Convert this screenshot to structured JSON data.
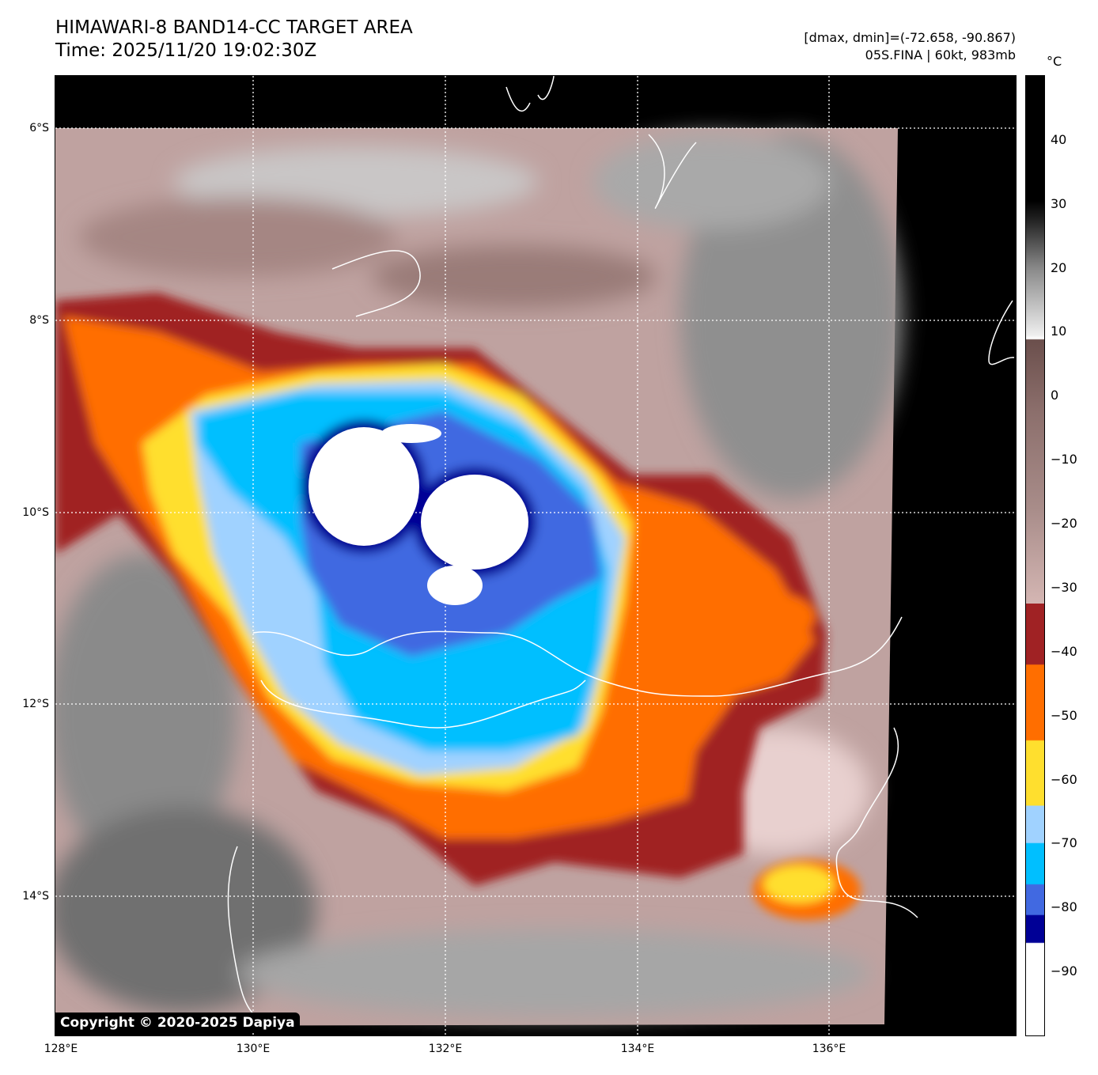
{
  "title": {
    "line1": "HIMAWARI-8 BAND14-CC TARGET AREA",
    "line2": "Time: 2025/11/20 19:02:30Z"
  },
  "info": {
    "range": "[dmax, dmin]=(-72.658, -90.867)",
    "storm": "05S.FINA | 60kt, 983mb"
  },
  "colorbar": {
    "unit": "°C",
    "ticks": [
      "40",
      "30",
      "20",
      "10",
      "0",
      "−10",
      "−20",
      "−30",
      "−40",
      "−50",
      "−60",
      "−70",
      "−80",
      "−90"
    ],
    "range": [
      -100,
      50
    ],
    "colors": {
      "darkred": "#a02224",
      "orange": "#ff6e00",
      "yellow": "#ffdf2e",
      "lightblue": "#a0d2ff",
      "skyblue": "#00bfff",
      "royalblue": "#4169e1",
      "navy": "#000096"
    }
  },
  "axes": {
    "lat": [
      "6°S",
      "8°S",
      "10°S",
      "12°S",
      "14°S"
    ],
    "lon": [
      "128°E",
      "130°E",
      "132°E",
      "134°E",
      "136°E"
    ]
  },
  "copyright": "Copyright © 2020-2025 Dapiya"
}
